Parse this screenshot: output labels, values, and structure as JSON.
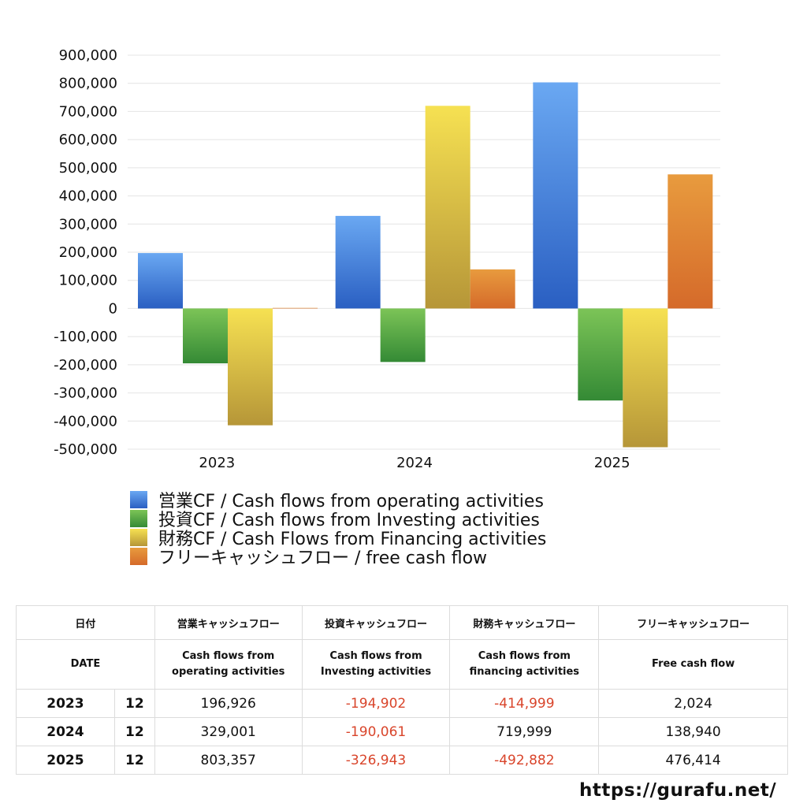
{
  "chart_data": {
    "type": "bar",
    "categories": [
      "2023",
      "2024",
      "2025"
    ],
    "series": [
      {
        "name": "営業CF / Cash flows from operating activities",
        "values": [
          196926,
          329001,
          803357
        ],
        "color": "#2f6fd0"
      },
      {
        "name": "投資CF / Cash flows from Investing activities",
        "values": [
          -194902,
          -190061,
          -326943
        ],
        "color": "#3d9a3a"
      },
      {
        "name": "財務CF / Cash Flows from Financing activities",
        "values": [
          -414999,
          719999,
          -492882
        ],
        "color": "#e6c83a"
      },
      {
        "name": "フリーキャッシュフロー / free cash flow",
        "values": [
          2024,
          138940,
          476414
        ],
        "color": "#e07b2e"
      }
    ],
    "ylim": [
      -500000,
      900000
    ],
    "yticks": [
      "900,000",
      "800,000",
      "700,000",
      "600,000",
      "500,000",
      "400,000",
      "300,000",
      "200,000",
      "100,000",
      "0",
      "-100,000",
      "-200,000",
      "-300,000",
      "-400,000",
      "-500,000"
    ],
    "grid": true,
    "legend_position": "bottom"
  },
  "table": {
    "header_jp": {
      "date": "日付",
      "operating": "営業キャッシュフロー",
      "investing": "投資キャッシュフロー",
      "financing": "財務キャッシュフロー",
      "free": "フリーキャッシュフロー"
    },
    "header_en": {
      "date": "DATE",
      "operating_1": "Cash flows from",
      "operating_2": "operating activities",
      "investing_1": "Cash flows from",
      "investing_2": "Investing activities",
      "financing_1": "Cash flows from",
      "financing_2": "financing activities",
      "free": "Free cash flow"
    },
    "rows": [
      {
        "year": "2023",
        "month": "12",
        "operating": "196,926",
        "investing": "-194,902",
        "financing": "-414,999",
        "free": "2,024"
      },
      {
        "year": "2024",
        "month": "12",
        "operating": "329,001",
        "investing": "-190,061",
        "financing": "719,999",
        "free": "138,940"
      },
      {
        "year": "2025",
        "month": "12",
        "operating": "803,357",
        "investing": "-326,943",
        "financing": "-492,882",
        "free": "476,414"
      }
    ]
  },
  "footer": {
    "url": "https://gurafu.net/"
  }
}
